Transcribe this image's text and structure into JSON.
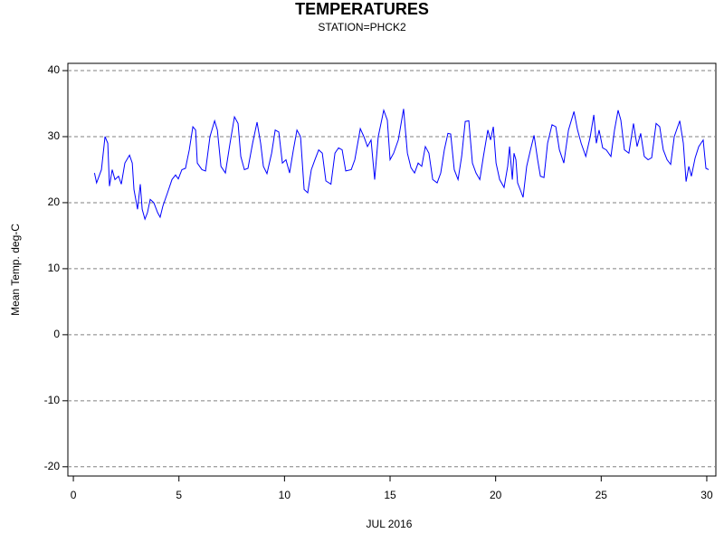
{
  "chart_data": {
    "type": "line",
    "title": "TEMPERATURES",
    "subtitle": "STATION=PHCK2",
    "x_label": "JUL 2016",
    "y_label": "Mean Temp. deg-C",
    "color": "#0000ff",
    "grid": true,
    "xlim": [
      -0.26,
      30.43
    ],
    "ylim": [
      -21.4,
      41.1
    ],
    "xticks": [
      0,
      5,
      10,
      15,
      20,
      25,
      30
    ],
    "yticks": [
      -20,
      -10,
      0,
      10,
      20,
      30,
      40
    ],
    "x": [
      1.0,
      1.1,
      1.33,
      1.5,
      1.63,
      1.71,
      1.84,
      1.97,
      2.14,
      2.27,
      2.44,
      2.66,
      2.79,
      2.87,
      3.04,
      3.17,
      3.26,
      3.39,
      3.51,
      3.64,
      3.81,
      3.99,
      4.11,
      4.24,
      4.46,
      4.67,
      4.84,
      4.97,
      5.14,
      5.31,
      5.49,
      5.66,
      5.79,
      5.87,
      6.09,
      6.26,
      6.47,
      6.69,
      6.82,
      6.99,
      7.2,
      7.42,
      7.63,
      7.8,
      7.93,
      8.1,
      8.27,
      8.49,
      8.7,
      8.87,
      9.0,
      9.17,
      9.39,
      9.56,
      9.73,
      9.9,
      10.07,
      10.24,
      10.42,
      10.59,
      10.76,
      10.93,
      11.1,
      11.27,
      11.44,
      11.62,
      11.79,
      11.96,
      12.2,
      12.39,
      12.56,
      12.73,
      12.9,
      13.16,
      13.33,
      13.59,
      13.76,
      13.93,
      14.1,
      14.27,
      14.44,
      14.7,
      14.87,
      15.0,
      15.17,
      15.39,
      15.64,
      15.82,
      15.99,
      16.16,
      16.33,
      16.5,
      16.67,
      16.84,
      17.02,
      17.23,
      17.4,
      17.57,
      17.74,
      17.87,
      18.04,
      18.22,
      18.39,
      18.56,
      18.73,
      18.9,
      19.07,
      19.25,
      19.42,
      19.63,
      19.76,
      19.89,
      20.02,
      20.19,
      20.4,
      20.57,
      20.66,
      20.79,
      20.87,
      20.96,
      21.04,
      21.22,
      21.3,
      21.47,
      21.65,
      21.82,
      21.99,
      22.12,
      22.29,
      22.46,
      22.67,
      22.85,
      23.02,
      23.23,
      23.45,
      23.71,
      23.88,
      24.05,
      24.27,
      24.48,
      24.65,
      24.77,
      24.9,
      25.07,
      25.24,
      25.46,
      25.63,
      25.8,
      25.93,
      26.1,
      26.31,
      26.53,
      26.7,
      26.87,
      27.04,
      27.22,
      27.39,
      27.6,
      27.77,
      27.94,
      28.12,
      28.29,
      28.46,
      28.72,
      28.89,
      29.02,
      29.15,
      29.27,
      29.45,
      29.62,
      29.83,
      29.96,
      30.09
    ],
    "values": [
      24.5,
      23,
      25,
      30,
      29,
      22.5,
      25,
      23.5,
      24,
      22.8,
      26,
      27.2,
      26,
      22,
      19,
      22.8,
      19,
      17.5,
      18.5,
      20.5,
      20,
      18.5,
      17.8,
      19.5,
      21.5,
      23.5,
      24.2,
      23.6,
      25,
      25.2,
      28,
      31.5,
      31,
      26,
      25,
      24.8,
      30,
      32.4,
      31,
      25.5,
      24.5,
      29,
      33,
      32,
      27,
      25,
      25.2,
      29,
      32.2,
      29,
      25.5,
      24.4,
      27.5,
      31,
      30.7,
      26,
      26.5,
      24.5,
      28,
      31,
      30,
      22,
      21.5,
      25,
      26.5,
      28,
      27.5,
      23.3,
      22.8,
      27.5,
      28.3,
      28,
      24.8,
      25,
      26.5,
      31.2,
      30,
      28.5,
      29.5,
      23.5,
      30,
      34,
      32.5,
      26.5,
      27.5,
      29.5,
      34.2,
      27.5,
      25.3,
      24.5,
      26,
      25.5,
      28.5,
      27.5,
      23.5,
      23,
      24.5,
      28,
      30.5,
      30.4,
      25,
      23.5,
      27,
      32.3,
      32.4,
      26,
      24.5,
      23.5,
      27,
      31,
      29.5,
      31.5,
      26,
      23.5,
      22.3,
      25.5,
      28.5,
      23.5,
      27.5,
      26.5,
      23,
      21.5,
      20.8,
      25.5,
      28,
      30.2,
      26.5,
      24,
      23.8,
      29,
      31.8,
      31.5,
      28,
      26,
      31,
      33.8,
      31,
      29,
      27,
      30,
      33.3,
      29,
      31,
      28.3,
      28,
      27,
      31,
      34,
      32.5,
      28,
      27.5,
      32,
      28.5,
      30.5,
      27,
      26.5,
      26.8,
      32,
      31.5,
      28,
      26.5,
      25.8,
      30,
      32.4,
      29,
      23.2,
      25.5,
      24,
      26.8,
      28.5,
      29.5,
      25.2,
      25
    ]
  }
}
